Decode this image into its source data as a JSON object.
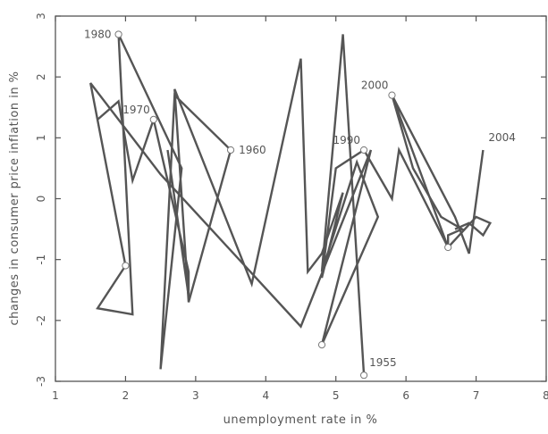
{
  "chart_data": {
    "type": "line",
    "title": "",
    "xlabel": "unemployment rate in %",
    "ylabel": "changes in consumer price inflation in %",
    "xlim": [
      1,
      8
    ],
    "ylim": [
      -3,
      3
    ],
    "xticks": [
      1,
      2,
      3,
      4,
      5,
      6,
      7,
      8
    ],
    "yticks": [
      -3,
      -2,
      -1,
      0,
      1,
      2,
      3
    ],
    "grid": false,
    "line_color": "#555555",
    "series": [
      {
        "points": [
          [
            5.4,
            -2.9
          ],
          [
            5.1,
            2.7
          ],
          [
            4.8,
            -1.2
          ],
          [
            5.3,
            0.6
          ],
          [
            5.6,
            -0.3
          ],
          [
            4.8,
            -2.4
          ],
          [
            5.5,
            0.8
          ],
          [
            4.5,
            -2.1
          ],
          [
            2.5,
            0.4
          ],
          [
            1.5,
            1.9
          ],
          [
            2.0,
            -1.1
          ],
          [
            1.6,
            -1.8
          ],
          [
            2.1,
            -1.9
          ],
          [
            1.9,
            2.7
          ],
          [
            2.8,
            0.5
          ],
          [
            2.5,
            -2.8
          ],
          [
            2.7,
            1.7
          ],
          [
            3.5,
            0.8
          ],
          [
            2.9,
            -1.7
          ],
          [
            2.7,
            1.8
          ],
          [
            3.8,
            -1.4
          ],
          [
            4.5,
            2.3
          ],
          [
            4.6,
            -1.2
          ],
          [
            4.8,
            -0.9
          ],
          [
            5.1,
            0.1
          ],
          [
            4.8,
            -1.3
          ],
          [
            5.0,
            0.5
          ],
          [
            5.4,
            0.8
          ],
          [
            5.8,
            0.0
          ],
          [
            5.9,
            0.8
          ],
          [
            6.6,
            -0.8
          ],
          [
            5.8,
            1.7
          ],
          [
            6.7,
            -0.3
          ],
          [
            6.9,
            -0.9
          ],
          [
            7.1,
            0.8
          ]
        ]
      },
      {
        "points": [
          [
            1.6,
            1.3
          ],
          [
            1.9,
            1.6
          ],
          [
            2.1,
            0.3
          ],
          [
            2.4,
            1.3
          ],
          [
            2.9,
            -1.2
          ],
          [
            2.9,
            -1.6
          ],
          [
            2.6,
            0.8
          ]
        ]
      },
      {
        "points": [
          [
            5.8,
            1.7
          ],
          [
            6.1,
            0.5
          ],
          [
            6.5,
            -0.3
          ],
          [
            6.8,
            -0.5
          ],
          [
            6.6,
            -0.6
          ],
          [
            6.6,
            -0.8
          ],
          [
            7.0,
            -0.3
          ],
          [
            7.2,
            -0.4
          ],
          [
            7.1,
            -0.6
          ],
          [
            6.9,
            -0.4
          ],
          [
            6.7,
            -0.5
          ]
        ]
      }
    ],
    "annotations": [
      {
        "label": "1980",
        "x": 1.9,
        "y": 2.7,
        "anchor": "left"
      },
      {
        "label": "1970",
        "x": 2.4,
        "y": 1.3,
        "anchor": "above-left"
      },
      {
        "label": "1960",
        "x": 3.5,
        "y": 0.8,
        "anchor": "right"
      },
      {
        "label": "1990",
        "x": 5.4,
        "y": 0.8,
        "anchor": "above-left"
      },
      {
        "label": "2000",
        "x": 5.8,
        "y": 1.7,
        "anchor": "above-left"
      },
      {
        "label": "2004",
        "x": 7.1,
        "y": 0.8,
        "anchor": "above-right"
      },
      {
        "label": "1955",
        "x": 5.4,
        "y": -2.9,
        "anchor": "above-right"
      }
    ],
    "marked_points": [
      [
        1.9,
        2.7
      ],
      [
        2.4,
        1.3
      ],
      [
        3.5,
        0.8
      ],
      [
        5.4,
        0.8
      ],
      [
        5.8,
        1.7
      ],
      [
        5.4,
        -2.9
      ],
      [
        2.0,
        -1.1
      ],
      [
        4.8,
        -2.4
      ],
      [
        6.6,
        -0.8
      ]
    ]
  }
}
